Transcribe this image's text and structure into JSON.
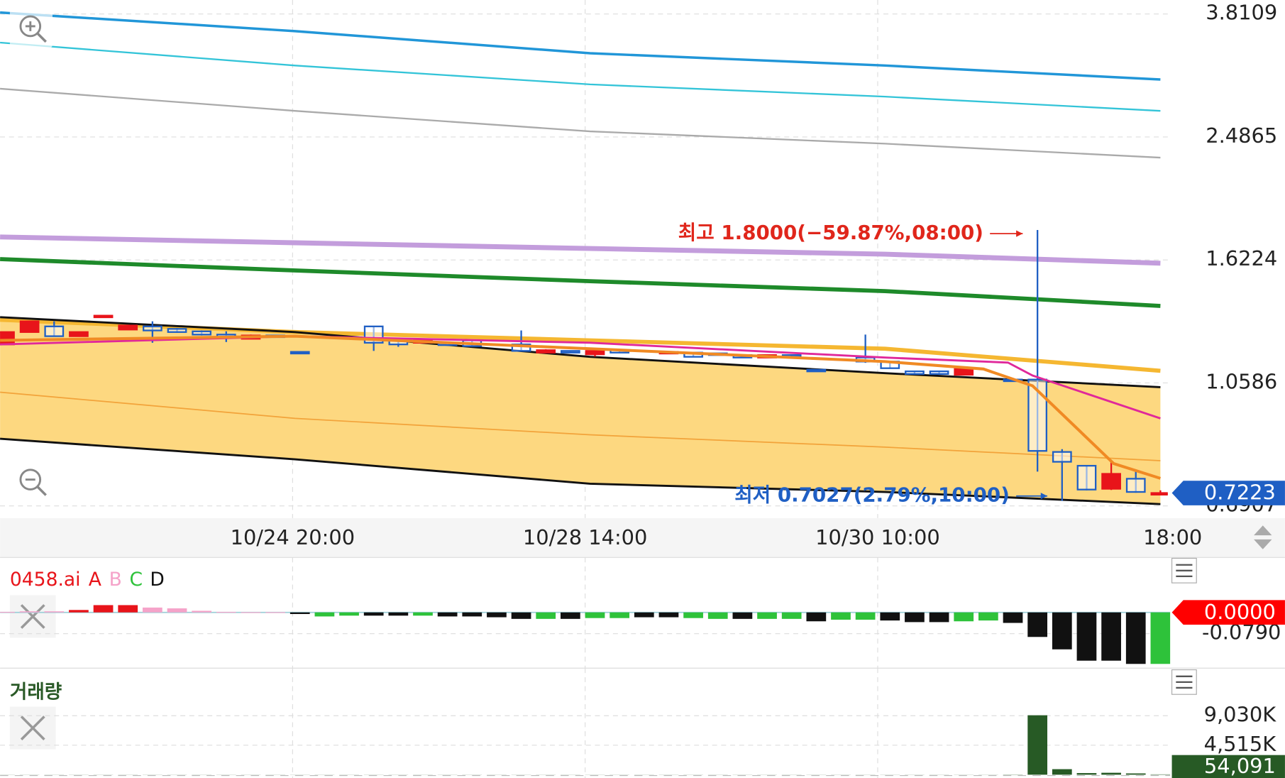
{
  "chart_data": [
    {
      "type": "candlestick",
      "log_scale": true,
      "grid": true,
      "ylim": [
        0.662,
        4.0
      ],
      "yticks": [
        3.8109,
        2.4865,
        1.6224,
        1.0586,
        0.6907
      ],
      "xlim": [
        -0.2,
        47.3
      ],
      "xticks": [
        {
          "value": 11.7,
          "label": "10/24 20:00"
        },
        {
          "value": 23.6,
          "label": "10/28 14:00"
        },
        {
          "value": 35.5,
          "label": "10/30 10:00"
        },
        {
          "value": 47.5,
          "label": "18:00"
        }
      ],
      "up_color": "#e8141a",
      "down_color": "#1f5fc4",
      "candles": [
        {
          "o": 1.21,
          "h": 1.263,
          "l": 1.21,
          "c": 1.263
        },
        {
          "o": 1.263,
          "h": 1.311,
          "l": 1.263,
          "c": 1.311
        },
        {
          "o": 1.288,
          "h": 1.311,
          "l": 1.245,
          "c": 1.245
        },
        {
          "o": 1.245,
          "h": 1.263,
          "l": 1.245,
          "c": 1.263
        },
        {
          "o": 1.335,
          "h": 1.337,
          "l": 1.335,
          "c": 1.337
        },
        {
          "o": 1.274,
          "h": 1.292,
          "l": 1.274,
          "c": 1.292
        },
        {
          "o": 1.288,
          "h": 1.311,
          "l": 1.217,
          "c": 1.27
        },
        {
          "o": 1.277,
          "h": 1.281,
          "l": 1.26,
          "c": 1.263
        },
        {
          "o": 1.266,
          "h": 1.27,
          "l": 1.248,
          "c": 1.252
        },
        {
          "o": 1.252,
          "h": 1.266,
          "l": 1.22,
          "c": 1.238
        },
        {
          "o": 1.234,
          "h": 1.252,
          "l": 1.234,
          "c": 1.248
        },
        {
          "o": 1.248,
          "h": 1.25,
          "l": 1.24,
          "c": 1.242
        },
        {
          "o": 1.179,
          "h": 1.18,
          "l": 1.172,
          "c": 1.173
        },
        null,
        null,
        {
          "o": 1.288,
          "h": 1.29,
          "l": 1.183,
          "c": 1.217
        },
        {
          "o": 1.227,
          "h": 1.23,
          "l": 1.2,
          "c": 1.21
        },
        {
          "o": 1.217,
          "h": 1.23,
          "l": 1.215,
          "c": 1.227
        },
        {
          "o": 1.217,
          "h": 1.22,
          "l": 1.205,
          "c": 1.207
        },
        {
          "o": 1.227,
          "h": 1.23,
          "l": 1.2,
          "c": 1.203
        },
        null,
        {
          "o": 1.21,
          "h": 1.27,
          "l": 1.18,
          "c": 1.183
        },
        {
          "o": 1.176,
          "h": 1.19,
          "l": 1.175,
          "c": 1.186
        },
        {
          "o": 1.183,
          "h": 1.185,
          "l": 1.175,
          "c": 1.176
        },
        {
          "o": 1.169,
          "h": 1.185,
          "l": 1.16,
          "c": 1.183
        },
        {
          "o": 1.186,
          "h": 1.188,
          "l": 1.175,
          "c": 1.176
        },
        null,
        {
          "o": 1.173,
          "h": 1.18,
          "l": 1.172,
          "c": 1.179
        },
        {
          "o": 1.176,
          "h": 1.178,
          "l": 1.157,
          "c": 1.159
        },
        {
          "o": 1.173,
          "h": 1.175,
          "l": 1.165,
          "c": 1.166
        },
        {
          "o": 1.166,
          "h": 1.168,
          "l": 1.155,
          "c": 1.156
        },
        {
          "o": 1.156,
          "h": 1.168,
          "l": 1.155,
          "c": 1.166
        },
        {
          "o": 1.166,
          "h": 1.168,
          "l": 1.158,
          "c": 1.159
        },
        {
          "o": 1.108,
          "h": 1.11,
          "l": 1.1,
          "c": 1.102
        },
        null,
        {
          "o": 1.156,
          "h": 1.252,
          "l": 1.135,
          "c": 1.14
        },
        {
          "o": 1.14,
          "h": 1.142,
          "l": 1.112,
          "c": 1.114
        },
        {
          "o": 1.102,
          "h": 1.104,
          "l": 1.09,
          "c": 1.092
        },
        {
          "o": 1.102,
          "h": 1.104,
          "l": 1.09,
          "c": 1.092
        },
        {
          "o": 1.089,
          "h": 1.113,
          "l": 1.088,
          "c": 1.111
        },
        null,
        {
          "o": 1.071,
          "h": 1.072,
          "l": 1.064,
          "c": 1.065
        },
        {
          "o": 1.071,
          "h": 1.8,
          "l": 0.778,
          "c": 0.836
        },
        {
          "o": 0.833,
          "h": 0.841,
          "l": 0.7027,
          "c": 0.805
        },
        {
          "o": 0.794,
          "h": 0.796,
          "l": 0.729,
          "c": 0.731
        },
        {
          "o": 0.733,
          "h": 0.808,
          "l": 0.73,
          "c": 0.772
        },
        {
          "o": 0.759,
          "h": 0.778,
          "l": 0.723,
          "c": 0.725
        },
        {
          "o": 0.7223,
          "h": 0.729,
          "l": 0.72,
          "c": 0.7223
        }
      ],
      "band": {
        "fill": "#fdd880",
        "color": "#111111",
        "upper": {
          "x": [
            -0.2,
            11.8,
            23.8,
            35.8,
            47
          ],
          "values": [
            1.33,
            1.263,
            1.159,
            1.095,
            1.043
          ]
        },
        "lower": {
          "x": [
            -0.2,
            11.8,
            23.8,
            35.8,
            47
          ],
          "values": [
            0.872,
            0.812,
            0.746,
            0.725,
            0.695
          ]
        }
      },
      "lines": [
        {
          "color": "#2196d8",
          "width": 3,
          "x": [
            -0.2,
            11.8,
            23.8,
            35.8,
            47
          ],
          "values": [
            3.83,
            3.59,
            3.325,
            3.186,
            3.035
          ]
        },
        {
          "color": "#33c4d8",
          "width": 2,
          "x": [
            -0.2,
            11.8,
            23.8,
            35.8,
            47
          ],
          "values": [
            3.45,
            3.186,
            2.984,
            2.86,
            2.722
          ]
        },
        {
          "color": "#aaaaaa",
          "width": 2,
          "x": [
            -0.2,
            11.8,
            23.8,
            35.8,
            47
          ],
          "values": [
            2.94,
            2.722,
            2.535,
            2.429,
            2.314
          ]
        },
        {
          "color": "#c39ddc",
          "width": 6,
          "x": [
            -0.2,
            11.8,
            23.8,
            35.8,
            47
          ],
          "values": [
            1.757,
            1.722,
            1.688,
            1.655,
            1.604
          ]
        },
        {
          "color": "#1e8a2a",
          "width": 5,
          "x": [
            -0.2,
            11.8,
            23.8,
            35.8,
            47
          ],
          "values": [
            1.627,
            1.564,
            1.507,
            1.456,
            1.383
          ]
        },
        {
          "color": "#f5b731",
          "width": 5,
          "x": [
            -0.2,
            11.8,
            23.8,
            35.8,
            47
          ],
          "values": [
            1.318,
            1.263,
            1.227,
            1.192,
            1.104
          ]
        },
        {
          "color": "#f2a33a",
          "width": 1.5,
          "x": [
            -0.2,
            11.8,
            23.8,
            35.8,
            47
          ],
          "values": [
            1.025,
            0.936,
            0.884,
            0.847,
            0.808
          ]
        }
      ],
      "averages": [
        {
          "color": "#e0289a",
          "width": 2.5,
          "x": [
            -0.2,
            11.8,
            23.8,
            35.8,
            40.8,
            41.8,
            47
          ],
          "values": [
            1.21,
            1.245,
            1.217,
            1.156,
            1.136,
            1.086,
            0.936
          ]
        },
        {
          "color": "#f08a24",
          "width": 3.5,
          "x": [
            -0.2,
            11.8,
            23.8,
            35.8,
            39.8,
            41.8,
            45.1,
            47
          ],
          "values": [
            1.227,
            1.245,
            1.192,
            1.14,
            1.111,
            1.048,
            0.8,
            0.76
          ]
        }
      ],
      "annotations": [
        {
          "text": "최고 1.8000(−59.87%,08:00)",
          "color": "#e0261b"
        },
        {
          "text": "최저 0.7027(2.79%,10:00)",
          "color": "#1f5fc4"
        }
      ],
      "last_price": {
        "value": 0.7223,
        "color": "#1f5fc4"
      }
    },
    {
      "type": "bar",
      "title": "0458.ai",
      "title_color": "#e8141a",
      "legend": [
        {
          "name": "A",
          "color": "#e8141a"
        },
        {
          "name": "B",
          "color": "#f5a3c9"
        },
        {
          "name": "C",
          "color": "#2ec23a"
        },
        {
          "name": "D",
          "color": "#111111"
        }
      ],
      "ylim": [
        -0.2,
        0.09
      ],
      "yticks": [
        {
          "value": -0.079,
          "label": "-0.0790"
        }
      ],
      "zero_label": {
        "value": 0,
        "label": "0.0000",
        "color": "#ff0000"
      },
      "values": [
        0.002,
        0.004,
        0.004,
        0.009,
        0.027,
        0.027,
        0.018,
        0.015,
        0.006,
        0.002,
        0.001,
        0.001,
        -0.006,
        -0.015,
        -0.012,
        -0.012,
        -0.012,
        -0.012,
        -0.015,
        -0.015,
        -0.018,
        -0.024,
        -0.024,
        -0.024,
        -0.021,
        -0.021,
        -0.018,
        -0.018,
        -0.021,
        -0.024,
        -0.024,
        -0.024,
        -0.024,
        -0.033,
        -0.027,
        -0.027,
        -0.03,
        -0.036,
        -0.036,
        -0.033,
        -0.03,
        -0.039,
        -0.091,
        -0.137,
        -0.179,
        -0.179,
        -0.191,
        -0.191
      ],
      "colors": [
        "#f5a3c9",
        "#f5a3c9",
        "#f5a3c9",
        "#e8141a",
        "#e8141a",
        "#e8141a",
        "#f5a3c9",
        "#f5a3c9",
        "#f5a3c9",
        "#f5a3c9",
        "#f5a3c9",
        "#f5a3c9",
        "#111111",
        "#2ec23a",
        "#2ec23a",
        "#111111",
        "#111111",
        "#2ec23a",
        "#111111",
        "#111111",
        "#111111",
        "#111111",
        "#2ec23a",
        "#111111",
        "#2ec23a",
        "#2ec23a",
        "#111111",
        "#111111",
        "#2ec23a",
        "#2ec23a",
        "#111111",
        "#2ec23a",
        "#2ec23a",
        "#111111",
        "#2ec23a",
        "#2ec23a",
        "#111111",
        "#111111",
        "#111111",
        "#2ec23a",
        "#2ec23a",
        "#111111",
        "#111111",
        "#111111",
        "#111111",
        "#111111",
        "#111111",
        "#2ec23a"
      ]
    },
    {
      "type": "bar",
      "title": "거래량",
      "title_color": "#2a5a27",
      "color": "#275a25",
      "ylim": [
        0,
        10000000
      ],
      "yticks": [
        {
          "value": 9030000,
          "label": "9,030K"
        },
        {
          "value": 4515000,
          "label": "4,515K"
        }
      ],
      "last_value": {
        "value": 54091,
        "label": "54,091",
        "color": "#275a25"
      },
      "values": [
        15000,
        15000,
        15000,
        15000,
        15000,
        15000,
        15000,
        15000,
        15000,
        15000,
        15000,
        15000,
        15000,
        15000,
        15000,
        15000,
        15000,
        15000,
        15000,
        15000,
        15000,
        15000,
        15000,
        15000,
        15000,
        15000,
        15000,
        15000,
        15000,
        15000,
        15000,
        15000,
        15000,
        15000,
        15000,
        15000,
        15000,
        15000,
        15000,
        15000,
        15000,
        30000,
        9100000,
        850000,
        250000,
        300000,
        200000,
        54091
      ]
    }
  ]
}
